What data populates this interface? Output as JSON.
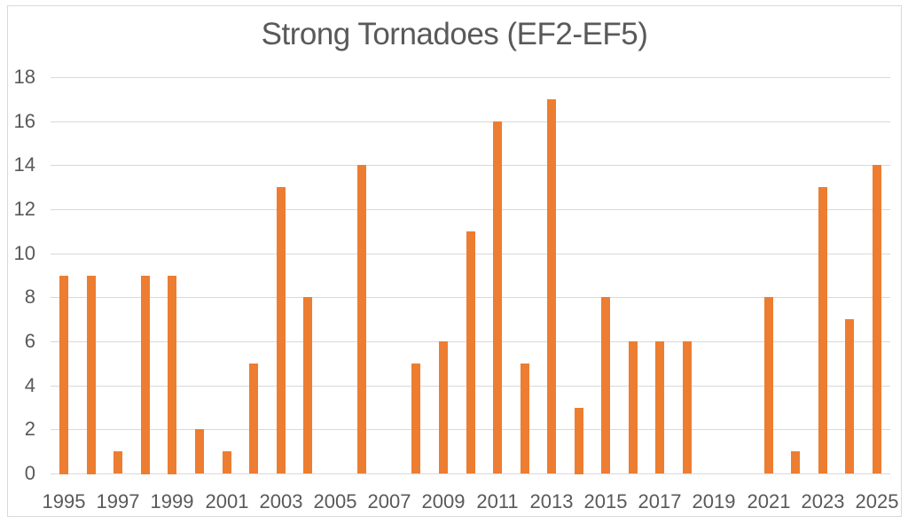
{
  "chart_data": {
    "type": "bar",
    "title": "Strong Tornadoes (EF2-EF5)",
    "categories": [
      1995,
      1996,
      1997,
      1998,
      1999,
      2000,
      2001,
      2002,
      2003,
      2004,
      2005,
      2006,
      2007,
      2008,
      2009,
      2010,
      2011,
      2012,
      2013,
      2014,
      2015,
      2016,
      2017,
      2018,
      2019,
      2020,
      2021,
      2022,
      2023,
      2024,
      2025
    ],
    "values": [
      9,
      9,
      1,
      9,
      9,
      2,
      1,
      5,
      13,
      8,
      0,
      14,
      0,
      5,
      6,
      11,
      16,
      5,
      17,
      3,
      8,
      6,
      6,
      6,
      0,
      0,
      8,
      1,
      13,
      7,
      14
    ],
    "xlabel": "",
    "ylabel": "",
    "ylim": [
      0,
      18
    ],
    "yticks": [
      0,
      2,
      4,
      6,
      8,
      10,
      12,
      14,
      16,
      18
    ],
    "xtick_labels": [
      "1995",
      "1997",
      "1999",
      "2001",
      "2003",
      "2005",
      "2007",
      "2009",
      "2011",
      "2013",
      "2015",
      "2017",
      "2019",
      "2021",
      "2023",
      "2025"
    ],
    "grid": true,
    "legend": "none",
    "colors": {
      "bar": "#ED7D31",
      "text": "#595959",
      "gridline": "#D9D9D9",
      "frame_border": "#D9D9D9",
      "background": "#FFFFFF"
    }
  }
}
